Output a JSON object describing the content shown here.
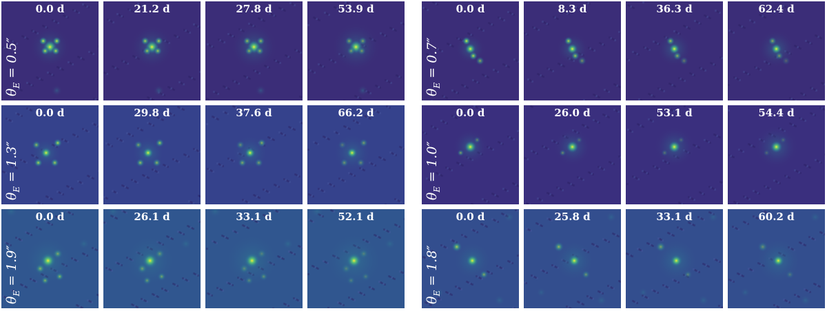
{
  "colors": {
    "background": "#3b2a7a",
    "blob": "#2f7f95",
    "core": "#f4ea3a",
    "mid": "#5fc870"
  },
  "rows": [
    {
      "label_symbol": "θ",
      "label_sub": "E",
      "label_value": " = 0.5″",
      "times": [
        "0.0 d",
        "21.2 d",
        "27.8 d",
        "53.9 d"
      ],
      "bg": "#3b2d78"
    },
    {
      "label_symbol": "θ",
      "label_sub": "E",
      "label_value": " = 0.7″",
      "times": [
        "0.0 d",
        "8.3 d",
        "36.3 d",
        "62.4 d"
      ],
      "bg": "#3b2d78"
    },
    {
      "label_symbol": "θ",
      "label_sub": "E",
      "label_value": " = 1.3″",
      "times": [
        "0.0 d",
        "29.8 d",
        "37.6 d",
        "66.2 d"
      ],
      "bg": "#35428c"
    },
    {
      "label_symbol": "θ",
      "label_sub": "E",
      "label_value": " = 1.0″",
      "times": [
        "0.0 d",
        "26.0 d",
        "53.1 d",
        "54.4 d"
      ],
      "bg": "#3a2f7e"
    },
    {
      "label_symbol": "θ",
      "label_sub": "E",
      "label_value": " = 1.9″",
      "times": [
        "0.0 d",
        "26.1 d",
        "33.1 d",
        "52.1 d"
      ],
      "bg": "#30568f"
    },
    {
      "label_symbol": "θ",
      "label_sub": "E",
      "label_value": " = 1.8″",
      "times": [
        "0.0 d",
        "25.8 d",
        "33.1 d",
        "60.2 d"
      ],
      "bg": "#334e8e"
    }
  ]
}
